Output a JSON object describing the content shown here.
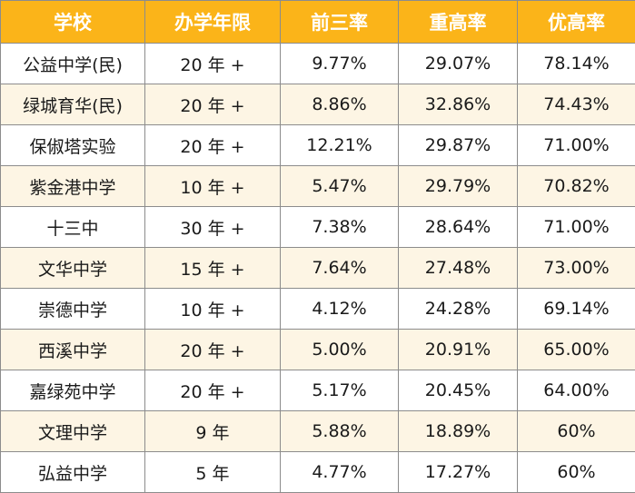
{
  "colors": {
    "header_bg": "#fbb419",
    "header_text": "#ffffff",
    "stripe_bg": "#fdf5e4",
    "border": "#8c8c8c"
  },
  "table": {
    "headers": [
      "学校",
      "办学年限",
      "前三率",
      "重高率",
      "优高率"
    ],
    "rows": [
      [
        "公益中学(民)",
        "20 年 +",
        "9.77%",
        "29.07%",
        "78.14%"
      ],
      [
        "绿城育华(民)",
        "20 年 +",
        "8.86%",
        "32.86%",
        "74.43%"
      ],
      [
        "保俶塔实验",
        "20 年 +",
        "12.21%",
        "29.87%",
        "71.00%"
      ],
      [
        "紫金港中学",
        "10 年 +",
        "5.47%",
        "29.79%",
        "70.82%"
      ],
      [
        "十三中",
        "30 年 +",
        "7.38%",
        "28.64%",
        "71.00%"
      ],
      [
        "文华中学",
        "15 年 +",
        "7.64%",
        "27.48%",
        "73.00%"
      ],
      [
        "崇德中学",
        "10 年 +",
        "4.12%",
        "24.28%",
        "69.14%"
      ],
      [
        "西溪中学",
        "20 年 +",
        "5.00%",
        "20.91%",
        "65.00%"
      ],
      [
        "嘉绿苑中学",
        "20 年 +",
        "5.17%",
        "20.45%",
        "64.00%"
      ],
      [
        "文理中学",
        "9 年",
        "5.88%",
        "18.89%",
        "60%"
      ],
      [
        "弘益中学",
        "5 年",
        "4.77%",
        "17.27%",
        "60%"
      ]
    ]
  }
}
